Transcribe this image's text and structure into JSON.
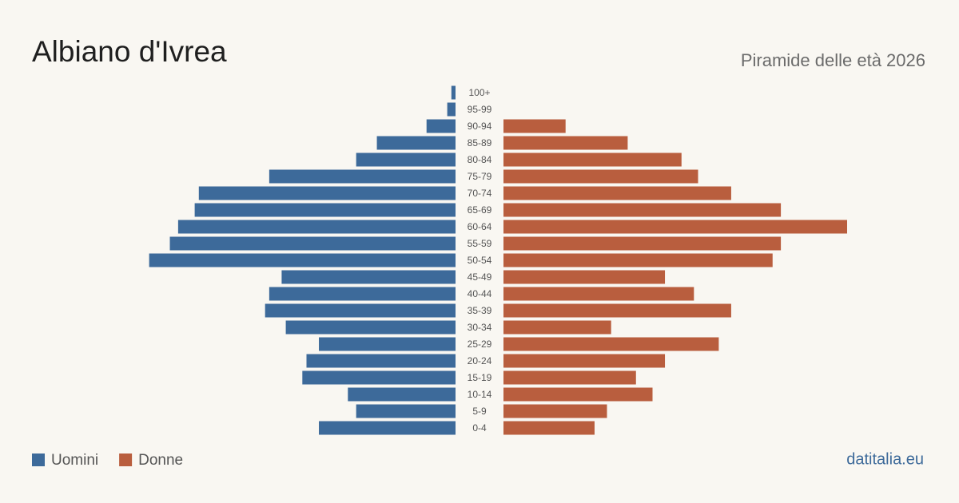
{
  "chart_data": {
    "type": "pyramid",
    "title": "Albiano d'Ivrea",
    "subtitle": "Piramide delle età 2026",
    "source": "datitalia.eu",
    "categories": [
      "100+",
      "95-99",
      "90-94",
      "85-89",
      "80-84",
      "75-79",
      "70-74",
      "65-69",
      "60-64",
      "55-59",
      "50-54",
      "45-49",
      "40-44",
      "35-39",
      "30-34",
      "25-29",
      "20-24",
      "15-19",
      "10-14",
      "5-9",
      "0-4"
    ],
    "series": [
      {
        "name": "Uomini",
        "color": "#3d6a9a",
        "values": [
          1,
          2,
          7,
          19,
          24,
          45,
          62,
          63,
          67,
          69,
          74,
          42,
          45,
          46,
          41,
          33,
          36,
          37,
          26,
          24,
          33
        ]
      },
      {
        "name": "Donne",
        "color": "#b95e3e",
        "values": [
          0,
          0,
          15,
          30,
          43,
          47,
          55,
          67,
          83,
          67,
          65,
          39,
          46,
          55,
          26,
          52,
          39,
          32,
          36,
          25,
          22
        ]
      }
    ]
  }
}
